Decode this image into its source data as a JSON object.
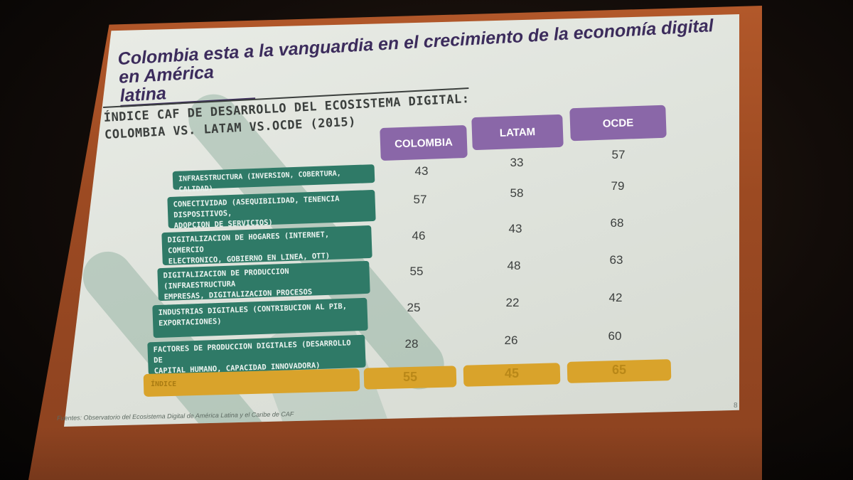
{
  "slide": {
    "title_line1": "Colombia esta a la vanguardia en el crecimiento de la economía digital",
    "title_line2": "en América latina",
    "subtitle_line1": "ÍNDICE CAF DE DESARROLLO DEL ECOSISTEMA DIGITAL:",
    "subtitle_line2": "COLOMBIA VS. LATAM VS.OCDE (2015)",
    "source": "Fuentes: Observatorio del Ecosistema Digital de América Latina y el Caribe de CAF",
    "page_number": "8"
  },
  "table": {
    "columns": [
      "COLOMBIA",
      "LATAM",
      "OCDE"
    ],
    "rows": [
      {
        "label": "INFRAESTRUCTURA (INVERSION, COBERTURA, CALIDAD)",
        "values": [
          "43",
          "33",
          "57"
        ]
      },
      {
        "label": "CONECTIVIDAD (ASEQUIBILIDAD, TENENCIA DISPOSITIVOS,\nADOPCION DE SERVICIOS)",
        "values": [
          "57",
          "58",
          "79"
        ]
      },
      {
        "label": "DIGITALIZACION DE HOGARES (INTERNET, COMERCIO\nELECTRONICO, GOBIERNO EN LINEA, OTT)",
        "values": [
          "46",
          "43",
          "68"
        ]
      },
      {
        "label": "DIGITALIZACION DE PRODUCCION (INFRAESTRUCTURA\nEMPRESAS, DIGITALIZACION PROCESOS PRODUCTIVOS)",
        "values": [
          "55",
          "48",
          "63"
        ]
      },
      {
        "label": "INDUSTRIAS DIGITALES (CONTRIBUCION AL PIB,\nEXPORTACIONES)",
        "values": [
          "25",
          "22",
          "42"
        ]
      },
      {
        "label": "FACTORES DE PRODUCCION DIGITALES (DESARROLLO DE\nCAPITAL HUMANO, CAPACIDAD INNOVADORA)",
        "values": [
          "28",
          "26",
          "60"
        ]
      }
    ],
    "index": {
      "label": "ÍNDICE",
      "values": [
        "55",
        "45",
        "65"
      ]
    }
  },
  "colors": {
    "header_purple": "#8a67a8",
    "row_green": "#2f7a67",
    "index_gold": "#d9a32b",
    "title_purple": "#3c2c5c"
  }
}
